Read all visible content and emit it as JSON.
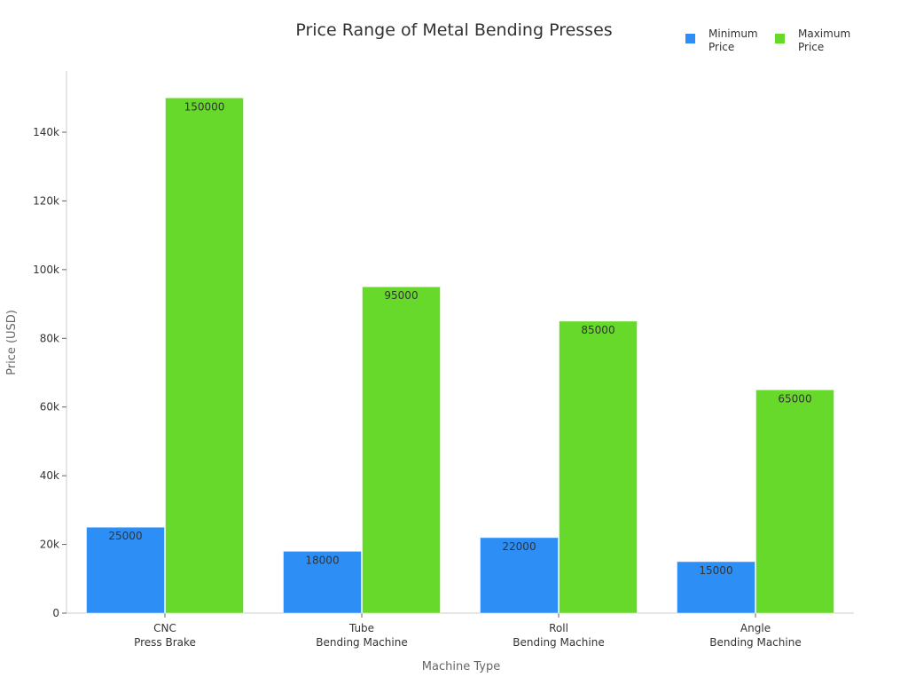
{
  "chart_data": {
    "type": "bar",
    "title": "Price Range of Metal Bending Presses",
    "xlabel": "Machine Type",
    "ylabel": "Price (USD)",
    "categories": [
      [
        "CNC",
        "Press Brake"
      ],
      [
        "Tube",
        "Bending Machine"
      ],
      [
        "Roll",
        "Bending Machine"
      ],
      [
        "Angle",
        "Bending Machine"
      ]
    ],
    "series": [
      {
        "name": "Minimum Price",
        "legend_lines": [
          "Minimum",
          "Price"
        ],
        "color": "#2d8ff5",
        "values": [
          25000,
          18000,
          22000,
          15000
        ]
      },
      {
        "name": "Maximum Price",
        "legend_lines": [
          "Maximum",
          "Price"
        ],
        "color": "#66d92a",
        "values": [
          150000,
          95000,
          85000,
          65000
        ]
      }
    ],
    "ylim": [
      0,
      158000
    ],
    "yticks": [
      0,
      20000,
      40000,
      60000,
      80000,
      100000,
      120000,
      140000
    ],
    "ytick_labels": [
      "0",
      "20k",
      "40k",
      "60k",
      "80k",
      "100k",
      "120k",
      "140k"
    ],
    "grid": false,
    "legend_placement": "top-right",
    "data_labels": true
  }
}
